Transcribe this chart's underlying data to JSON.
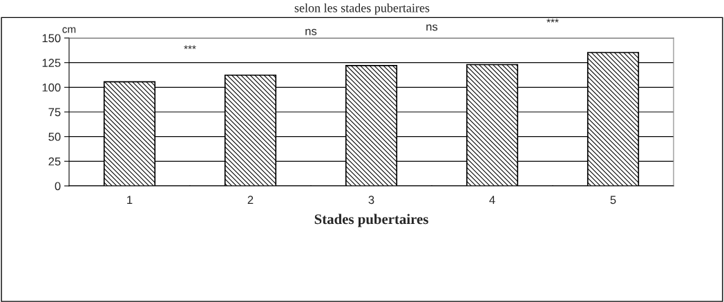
{
  "chart_data": {
    "type": "bar",
    "title": "selon les stades pubertaires",
    "xlabel": "Stades pubertaires",
    "ylabel": "cm",
    "categories": [
      "1",
      "2",
      "3",
      "4",
      "5"
    ],
    "values": [
      105.6,
      112.3,
      122,
      123,
      135.3
    ],
    "ylim": [
      0,
      150
    ],
    "yticks": [
      0,
      25,
      50,
      75,
      100,
      125,
      150
    ],
    "grid": "y",
    "annotations": [
      "***",
      "ns",
      "ns",
      "***"
    ]
  }
}
